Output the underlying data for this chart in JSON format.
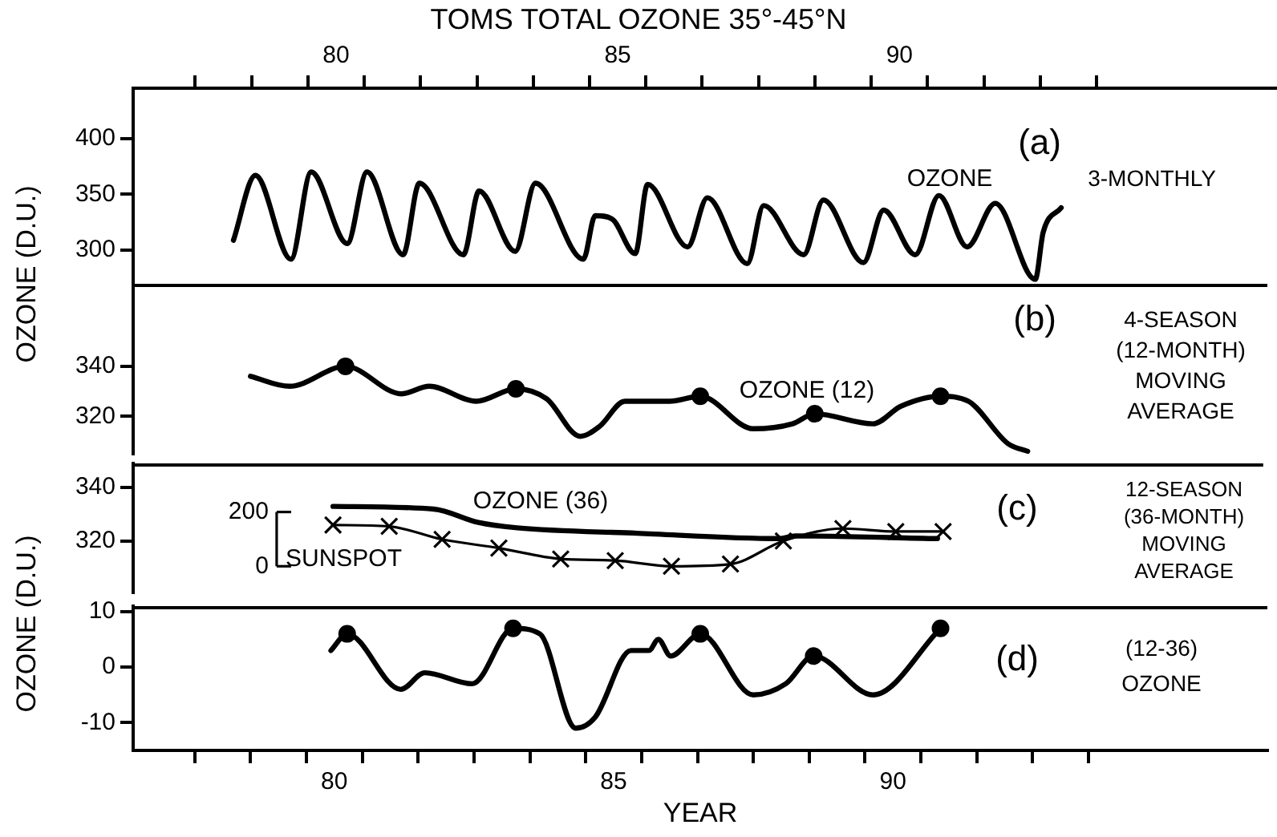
{
  "chart_data": [
    {
      "type": "line",
      "title": "TOMS TOTAL OZONE 35°-45°N",
      "ylabel": "OZONE (D.U.)",
      "annotations": [
        "(a)",
        "3-MONTHLY"
      ],
      "x": [
        78.18,
        78.57,
        79.2,
        79.56,
        80.2,
        80.55,
        81.19,
        81.48,
        82.26,
        82.54,
        83.18,
        83.54,
        84.39,
        84.6,
        84.9,
        85.31,
        85.53,
        86.24,
        86.59,
        87.3,
        87.59,
        88.3,
        88.65,
        89.36,
        89.72,
        90.28,
        90.7,
        91.2,
        91.7,
        92.41,
        92.55,
        92.87
      ],
      "series": [
        {
          "name": "OZONE",
          "color": "#000000",
          "marker": "none",
          "values": [
            309,
            367,
            292,
            370,
            306,
            370,
            296,
            360,
            296,
            353,
            299,
            360,
            292,
            331,
            328,
            297,
            359,
            303,
            347,
            288,
            340,
            296,
            345,
            289,
            336,
            296,
            349,
            303,
            342,
            274,
            316,
            338
          ]
        }
      ],
      "xlim": [
        76.4,
        96.7
      ],
      "xticks": [
        {
          "value": 77.5,
          "label": null
        },
        {
          "value": 78.5,
          "label": null
        },
        {
          "value": 79.5,
          "label": null
        },
        80,
        {
          "value": 80.5,
          "label": null
        },
        {
          "value": 81.5,
          "label": null
        },
        {
          "value": 82.5,
          "label": null
        },
        {
          "value": 83.5,
          "label": null
        },
        {
          "value": 84.5,
          "label": null
        },
        85,
        {
          "value": 85.5,
          "label": null
        },
        {
          "value": 86.5,
          "label": null
        },
        {
          "value": 87.5,
          "label": null
        },
        {
          "value": 88.5,
          "label": null
        },
        {
          "value": 89.5,
          "label": null
        },
        90,
        {
          "value": 90.5,
          "label": null
        },
        {
          "value": 91.5,
          "label": null
        },
        {
          "value": 92.5,
          "label": null
        },
        {
          "value": 93.5,
          "label": null
        }
      ],
      "ylim": [
        270,
        445
      ],
      "yticks": [
        300,
        350,
        400
      ],
      "grid": false,
      "legend": false
    },
    {
      "type": "line",
      "annotations": [
        "(b)",
        "4-SEASON (12-MONTH) MOVING AVERAGE"
      ],
      "x": [
        78.5,
        79.2,
        80.2,
        81.2,
        81.7,
        82.54,
        83.25,
        83.8,
        84.4,
        84.75,
        85.2,
        86.0,
        86.55,
        87.5,
        88.2,
        88.6,
        89.64,
        90.14,
        90.85,
        91.35,
        92.06,
        92.41
      ],
      "series": [
        {
          "name": "OZONE (12)",
          "color": "#000000",
          "marker": "none",
          "values": [
            336,
            332,
            340,
            329,
            332,
            326,
            331,
            327,
            312,
            316,
            326,
            326,
            328,
            315,
            317,
            321,
            317,
            324,
            328,
            326,
            309,
            306
          ]
        },
        {
          "type": "scatter",
          "color": "#000000",
          "marker": "circle",
          "x": [
            80.2,
            83.25,
            86.55,
            88.6,
            90.85
          ],
          "values": [
            340,
            331,
            328,
            321,
            328
          ]
        }
      ],
      "xlim": [
        76.4,
        96.7
      ],
      "ylim": [
        305,
        373
      ],
      "yticks": [
        320,
        340
      ],
      "tick_labels": "y",
      "grid": false,
      "legend": false
    },
    {
      "type": "line",
      "ylabel": "OZONE (D.U.)",
      "annotations": [
        "(c)",
        "12-SEASON (36-MONTH) MOVING AVERAGE",
        "SUNSPOT"
      ],
      "series": [
        {
          "name": "OZONE (36)",
          "color": "#000000",
          "marker": "none",
          "x": [
            79.99,
            81.8,
            82.6,
            83.3,
            85.45,
            88.0,
            88.3,
            90.85
          ],
          "values": [
            333,
            332,
            327,
            325,
            323,
            321,
            322,
            321
          ]
        },
        {
          "color": "#000000",
          "marker": "cross",
          "axis": "y2",
          "x": [
            79.99,
            81.0,
            81.95,
            82.97,
            84.08,
            85.06,
            86.07,
            87.13,
            88.08,
            89.15,
            90.1,
            90.95
          ],
          "values": [
            152,
            147,
            99,
            67,
            27,
            21,
            0,
            8,
            93,
            139,
            128,
            128
          ]
        }
      ],
      "xlim": [
        76.4,
        96.7
      ],
      "ylim": [
        301,
        349
      ],
      "yticks": [
        320,
        340
      ],
      "y2lim": [
        -96,
        379
      ],
      "y2ticks": [
        0,
        200
      ],
      "tick_labels": "y",
      "grid": false,
      "legend": false
    },
    {
      "type": "line",
      "xlabel": "YEAR",
      "annotations": [
        "(d)",
        "(12-36) OZONE"
      ],
      "x": [
        79.94,
        80.23,
        81.19,
        81.62,
        82.47,
        83.2,
        83.68,
        84.32,
        84.67,
        85.31,
        85.63,
        85.8,
        86.02,
        86.55,
        87.5,
        88.08,
        88.58,
        89.64,
        90.85
      ],
      "series": [
        {
          "color": "#000000",
          "marker": "none",
          "values": [
            3,
            6,
            -4,
            -1,
            -3,
            7,
            6,
            -11,
            -9,
            3,
            3,
            5,
            2,
            6,
            -5,
            -3,
            2,
            -5,
            7
          ]
        },
        {
          "type": "scatter",
          "color": "#000000",
          "marker": "circle",
          "x": [
            80.23,
            83.2,
            86.55,
            88.58,
            90.85
          ],
          "values": [
            6,
            7,
            6,
            2,
            7
          ]
        }
      ],
      "xlim": [
        76.4,
        96.7
      ],
      "xticks": [
        {
          "value": 77.5,
          "label": null
        },
        {
          "value": 78.5,
          "label": null
        },
        {
          "value": 79.5,
          "label": null
        },
        80,
        {
          "value": 80.5,
          "label": null
        },
        {
          "value": 81.5,
          "label": null
        },
        {
          "value": 82.5,
          "label": null
        },
        {
          "value": 83.5,
          "label": null
        },
        {
          "value": 84.5,
          "label": null
        },
        85,
        {
          "value": 85.5,
          "label": null
        },
        {
          "value": 86.5,
          "label": null
        },
        {
          "value": 87.5,
          "label": null
        },
        {
          "value": 88.5,
          "label": null
        },
        {
          "value": 89.5,
          "label": null
        },
        90,
        {
          "value": 90.5,
          "label": null
        },
        {
          "value": 91.5,
          "label": null
        },
        {
          "value": 92.5,
          "label": null
        },
        {
          "value": 93.5,
          "label": null
        }
      ],
      "ylim": [
        -15,
        11
      ],
      "yticks": [
        -10,
        0,
        10
      ],
      "grid": false,
      "legend": false
    }
  ]
}
